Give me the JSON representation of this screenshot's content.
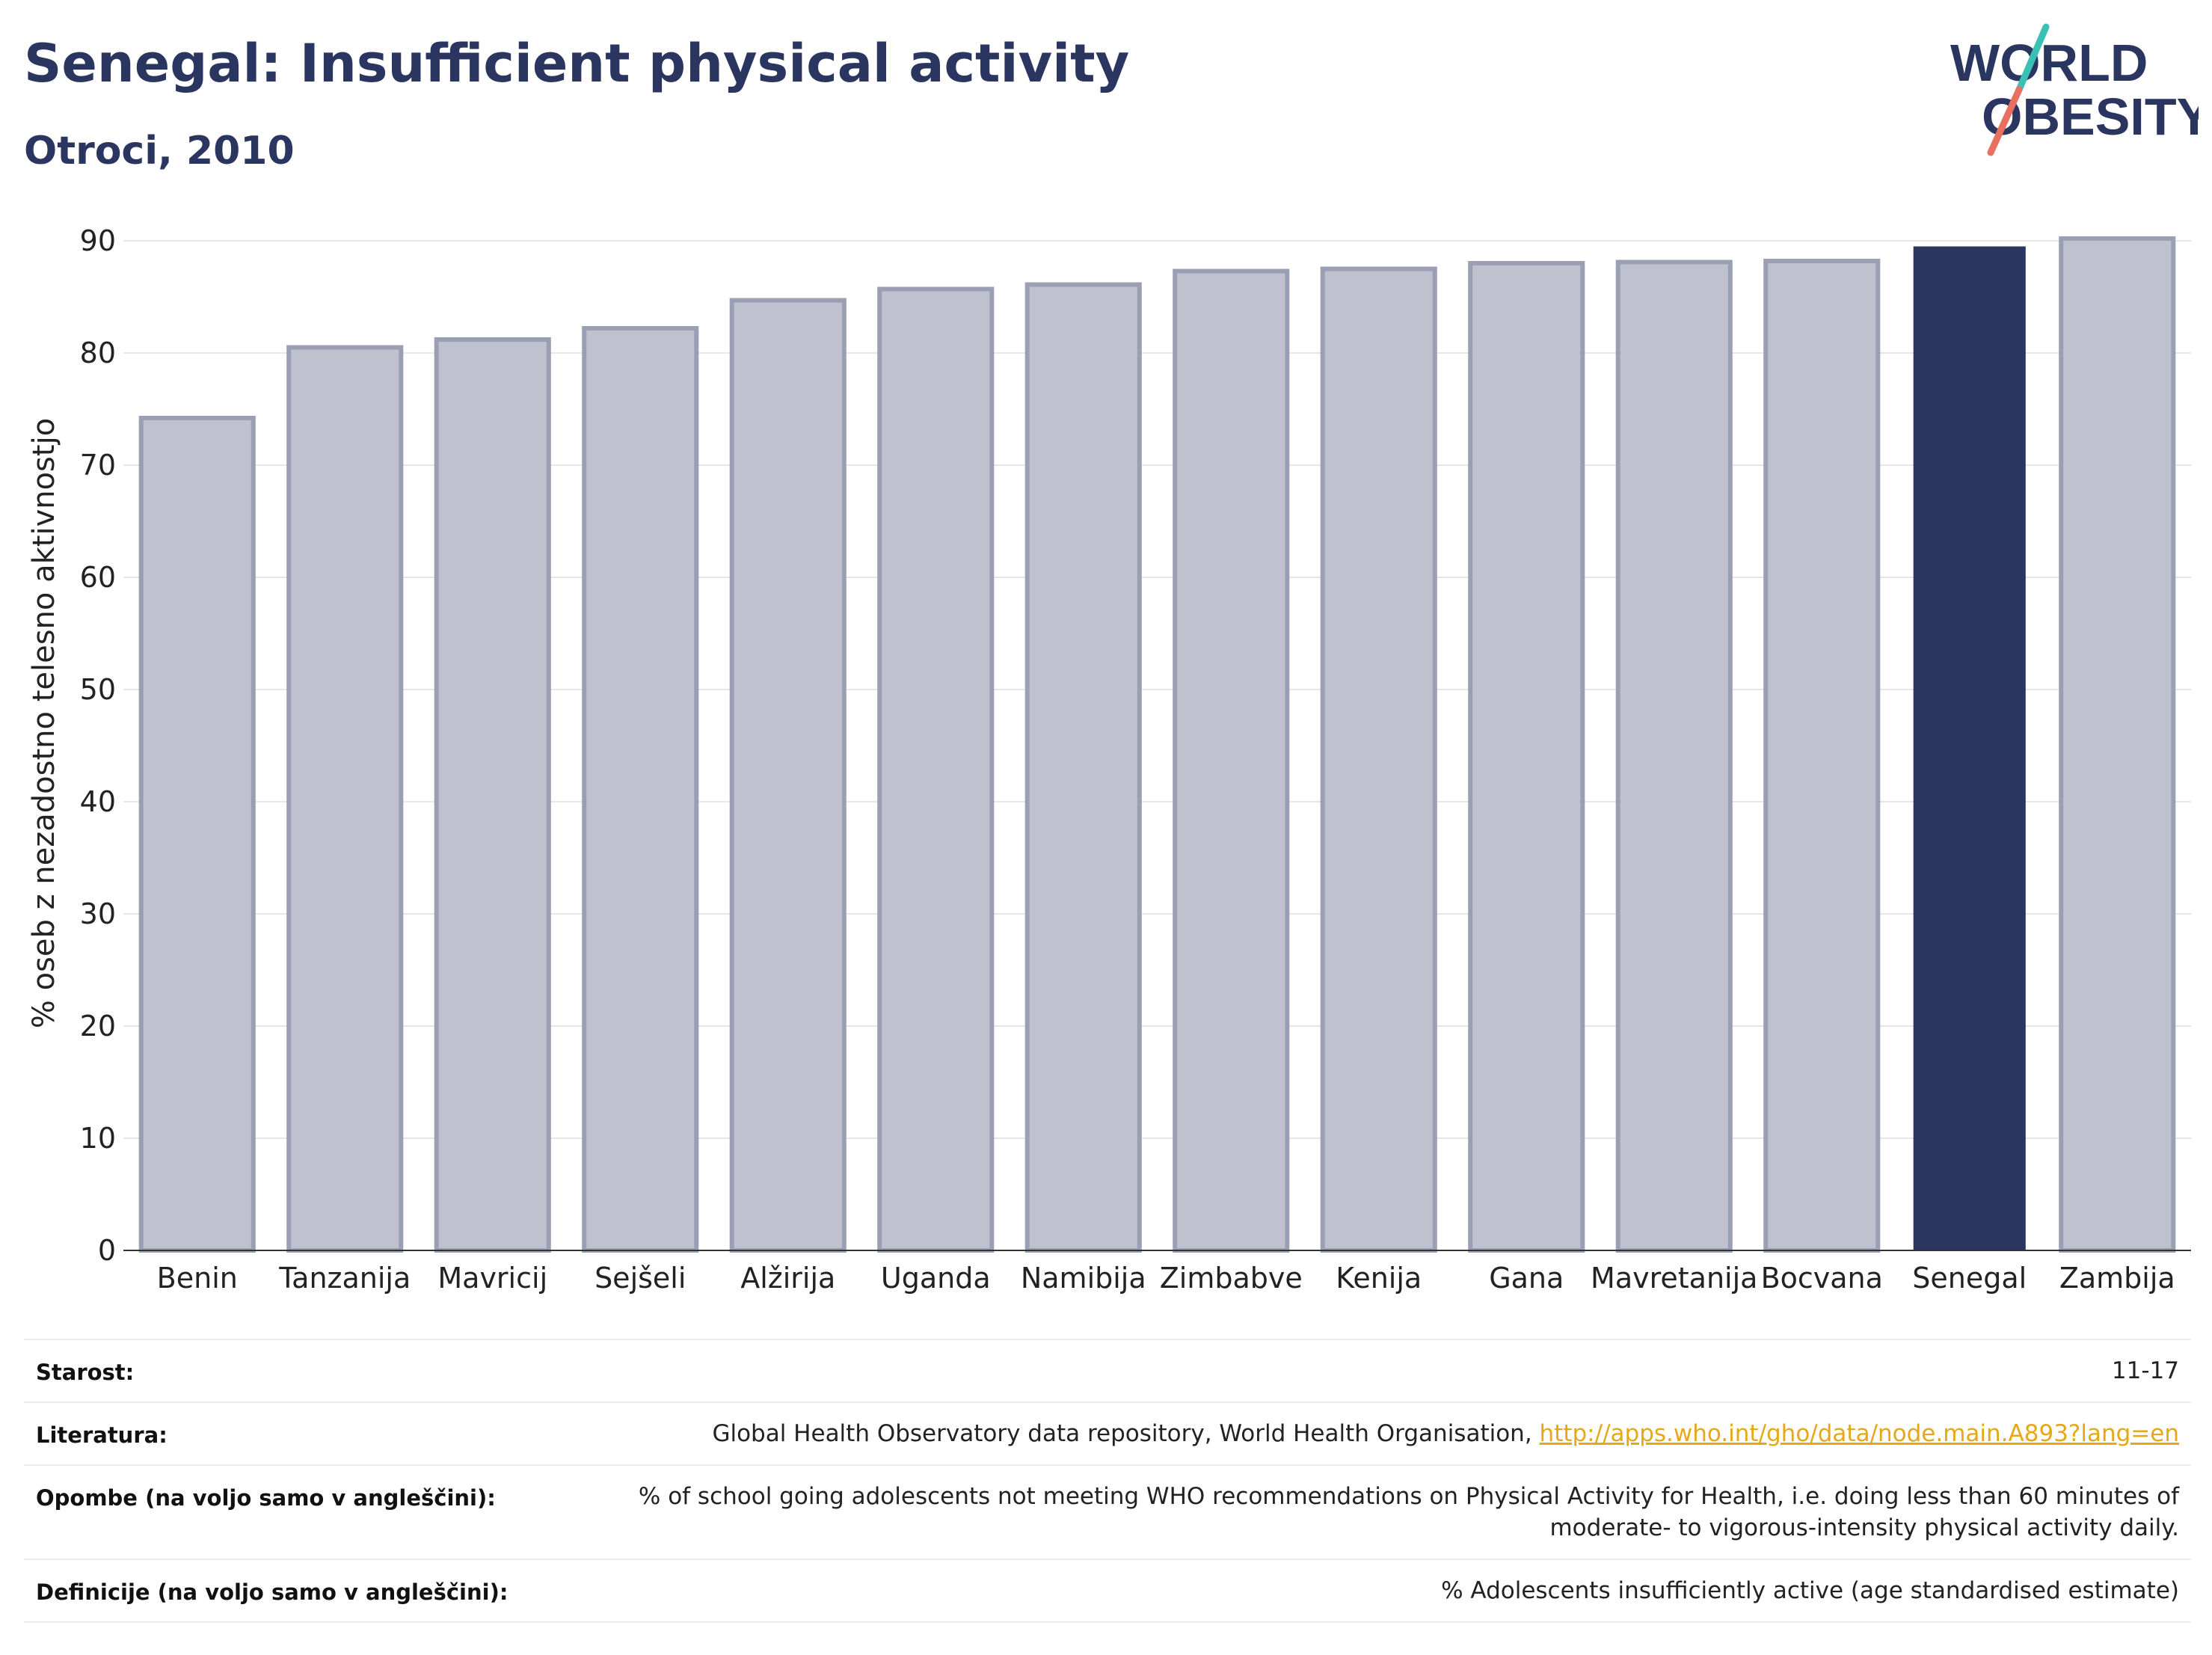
{
  "header": {
    "title": "Senegal: Insufficient physical activity",
    "subtitle": "Otroci, 2010"
  },
  "logo": {
    "line1": "WORLD",
    "line2": "OBESITY",
    "colors": {
      "text": "#2a3560",
      "slash_top": "#3cc0b3",
      "slash_bottom": "#e8705f"
    }
  },
  "chart_data": {
    "type": "bar",
    "categories": [
      "Benin",
      "Tanzanija",
      "Mavricij",
      "Sejšeli",
      "Alžirija",
      "Uganda",
      "Namibija",
      "Zimbabve",
      "Kenija",
      "Gana",
      "Mavretanija",
      "Bocvana",
      "Senegal",
      "Zambija"
    ],
    "values": [
      74.2,
      80.5,
      81.2,
      82.2,
      84.7,
      85.7,
      86.1,
      87.3,
      87.5,
      88.0,
      88.1,
      88.2,
      89.5,
      90.2
    ],
    "highlight": "Senegal",
    "ylabel": "% oseb z nezadostno telesno aktivnostjo",
    "ylim": [
      0,
      90
    ],
    "yticks": [
      0,
      10,
      20,
      30,
      40,
      50,
      60,
      70,
      80,
      90
    ],
    "grid": true,
    "colors": {
      "bar": "#bfc2ce",
      "bar_border": "#9a9fb4",
      "highlight": "#2a3560"
    }
  },
  "info": [
    {
      "label": "Starost:",
      "value": "11-17"
    },
    {
      "label": "Literatura:",
      "value": "Global Health Observatory data repository, World Health Organisation, ",
      "link": "http://apps.who.int/gho/data/node.main.A893?lang=en"
    },
    {
      "label": "Opombe (na voljo samo v angleščini):",
      "value_line1": "% of school going adolescents not meeting WHO recommendations on Physical Activity for Health, i.e. doing less than 60 minutes of",
      "value_line2": "moderate- to vigorous-intensity physical activity daily."
    },
    {
      "label": "Definicije (na voljo samo v angleščini):",
      "value": "% Adolescents insufficiently active (age standardised estimate)"
    }
  ]
}
